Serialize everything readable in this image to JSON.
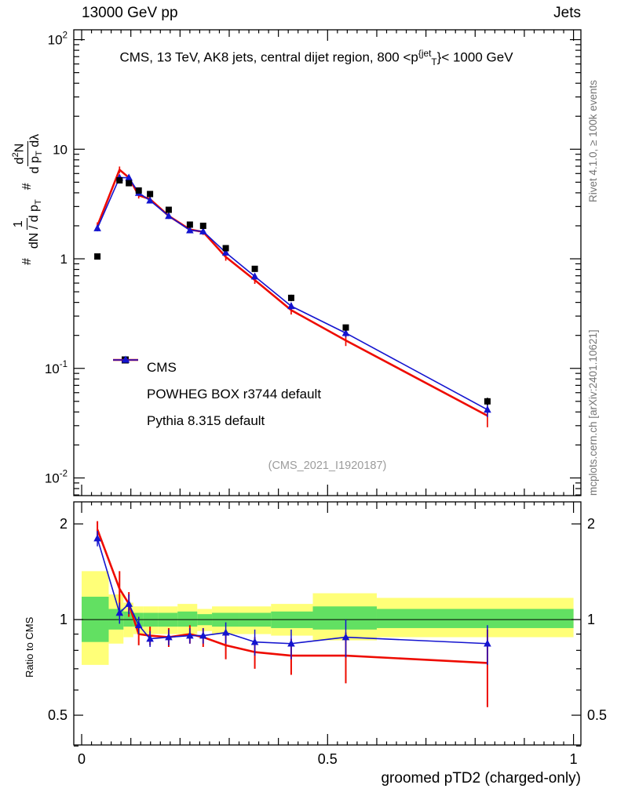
{
  "header": {
    "left": "13000 GeV pp",
    "right": "Jets"
  },
  "panel_title": {
    "tokens": [
      {
        "t": "CMS, 13 TeV, AK8 jets, central dijet region, 800 <p"
      },
      {
        "t": "{jet",
        "sup": true
      },
      {
        "t": "T",
        "sub": true
      },
      {
        "t": "}< 1000 GeV"
      }
    ]
  },
  "yaxis_label": {
    "hash1": "#",
    "frac1_num": [
      {
        "t": "1"
      }
    ],
    "frac1_den": [
      {
        "t": "dN / d p"
      },
      {
        "t": "T",
        "sub": true
      }
    ],
    "hash2": "#",
    "frac2_num": [
      {
        "t": "d"
      },
      {
        "t": "2",
        "sup": true
      },
      {
        "t": "N"
      }
    ],
    "frac2_den": [
      {
        "t": "d p"
      },
      {
        "t": "T",
        "sub": true
      },
      {
        "t": " dλ"
      }
    ]
  },
  "legend": {
    "items": [
      {
        "label": "CMS"
      },
      {
        "label": "POWHEG BOX r3744 default"
      },
      {
        "label": "Pythia 8.315 default"
      }
    ]
  },
  "watermark": "(CMS_2021_I1920187)",
  "side_notes": {
    "top_right": "Rivet 4.1.0, ≥ 100k events",
    "bottom_right": "mcplots.cern.ch [arXiv:2401.10621]"
  },
  "ratio_ylabel": "Ratio to CMS",
  "colors": {
    "cms": "#000000",
    "powheg": "#ee0b00",
    "pythia": "#1414cf",
    "band_yellow": "#ffff78",
    "band_green": "#62e062",
    "note_gray": "#757575",
    "watermark_gray": "#9c9c9c"
  },
  "chart_data": {
    "type": "line",
    "title": "CMS, 13 TeV, AK8 jets, central dijet region, 800 < pT(jet) < 1000 GeV",
    "x": [
      0.032,
      0.077,
      0.096,
      0.116,
      0.139,
      0.177,
      0.22,
      0.247,
      0.293,
      0.352,
      0.426,
      0.537,
      0.825
    ],
    "series": [
      {
        "name": "CMS",
        "role": "data",
        "marker": "square",
        "values": [
          1.05,
          5.2,
          4.9,
          4.2,
          3.9,
          2.8,
          2.05,
          2.0,
          1.25,
          0.81,
          0.44,
          0.236,
          0.05
        ],
        "errors": [
          0.06,
          0.3,
          0.28,
          0.24,
          0.22,
          0.16,
          0.12,
          0.11,
          0.07,
          0.05,
          0.03,
          0.015,
          0.004
        ]
      },
      {
        "name": "POWHEG BOX r3744 default",
        "role": "prediction",
        "marker": "none",
        "values": [
          2.0,
          6.5,
          5.5,
          3.8,
          3.5,
          2.46,
          1.85,
          1.76,
          1.04,
          0.64,
          0.34,
          0.18,
          0.037
        ],
        "errors": [
          0.15,
          0.45,
          0.35,
          0.25,
          0.22,
          0.15,
          0.12,
          0.11,
          0.08,
          0.05,
          0.03,
          0.02,
          0.008
        ],
        "ratio": [
          1.92,
          1.25,
          1.12,
          0.9,
          0.89,
          0.88,
          0.9,
          0.88,
          0.83,
          0.79,
          0.77,
          0.77,
          0.73
        ],
        "ratio_errors": [
          0.12,
          0.17,
          0.1,
          0.07,
          0.06,
          0.06,
          0.06,
          0.06,
          0.08,
          0.09,
          0.1,
          0.14,
          0.2
        ]
      },
      {
        "name": "Pythia 8.315 default",
        "role": "prediction",
        "marker": "triangle",
        "values": [
          1.9,
          5.5,
          5.5,
          4.0,
          3.4,
          2.46,
          1.82,
          1.78,
          1.14,
          0.69,
          0.37,
          0.21,
          0.042
        ],
        "errors": [
          0.12,
          0.35,
          0.3,
          0.22,
          0.2,
          0.14,
          0.11,
          0.1,
          0.07,
          0.045,
          0.028,
          0.018,
          0.006
        ],
        "ratio": [
          1.8,
          1.05,
          1.12,
          0.96,
          0.87,
          0.88,
          0.89,
          0.89,
          0.91,
          0.85,
          0.84,
          0.88,
          0.84
        ],
        "ratio_errors": [
          0.1,
          0.08,
          0.08,
          0.06,
          0.05,
          0.05,
          0.05,
          0.05,
          0.07,
          0.08,
          0.09,
          0.12,
          0.12
        ]
      }
    ],
    "bands": {
      "bin_edges": [
        0,
        0.055,
        0.085,
        0.105,
        0.125,
        0.155,
        0.195,
        0.235,
        0.265,
        0.32,
        0.385,
        0.47,
        0.6,
        1.0
      ],
      "yellow_lo": [
        0.72,
        0.84,
        0.88,
        0.9,
        0.9,
        0.9,
        0.9,
        0.92,
        0.9,
        0.9,
        0.89,
        0.86,
        0.88
      ],
      "yellow_hi": [
        1.42,
        1.2,
        1.13,
        1.1,
        1.1,
        1.1,
        1.12,
        1.08,
        1.1,
        1.1,
        1.12,
        1.21,
        1.17
      ],
      "green_lo": [
        0.85,
        0.93,
        0.95,
        0.95,
        0.95,
        0.95,
        0.95,
        0.96,
        0.95,
        0.95,
        0.94,
        0.93,
        0.94
      ],
      "green_hi": [
        1.18,
        1.08,
        1.06,
        1.05,
        1.05,
        1.05,
        1.06,
        1.04,
        1.05,
        1.05,
        1.06,
        1.1,
        1.08
      ]
    },
    "axes": {
      "x": {
        "min": -0.016,
        "max": 1.015,
        "major": [
          0,
          0.5,
          1
        ],
        "labels": [
          "0",
          "0.5",
          "1"
        ],
        "title": "groomed pTD2 (charged-only)"
      },
      "y_main": {
        "scale": "log",
        "min": 0.0069,
        "max": 123,
        "ticks": [
          {
            "v": 100,
            "m": "10",
            "e": "2"
          },
          {
            "v": 10,
            "m": "10",
            "e": ""
          },
          {
            "v": 1,
            "m": "1",
            "e": ""
          },
          {
            "v": 0.1,
            "m": "10",
            "e": "-1"
          },
          {
            "v": 0.01,
            "m": "10",
            "e": "-2"
          }
        ]
      },
      "y_ratio": {
        "scale": "log",
        "min": 0.403,
        "max": 2.346,
        "ticks": [
          {
            "v": 2,
            "m": "2"
          },
          {
            "v": 1,
            "m": "1"
          },
          {
            "v": 0.5,
            "m": "0.5"
          }
        ],
        "minor": [
          0.4,
          0.6,
          0.7,
          0.8,
          0.9
        ]
      },
      "legend_position": "middle-left",
      "grid": false
    },
    "reference_line": 1
  }
}
